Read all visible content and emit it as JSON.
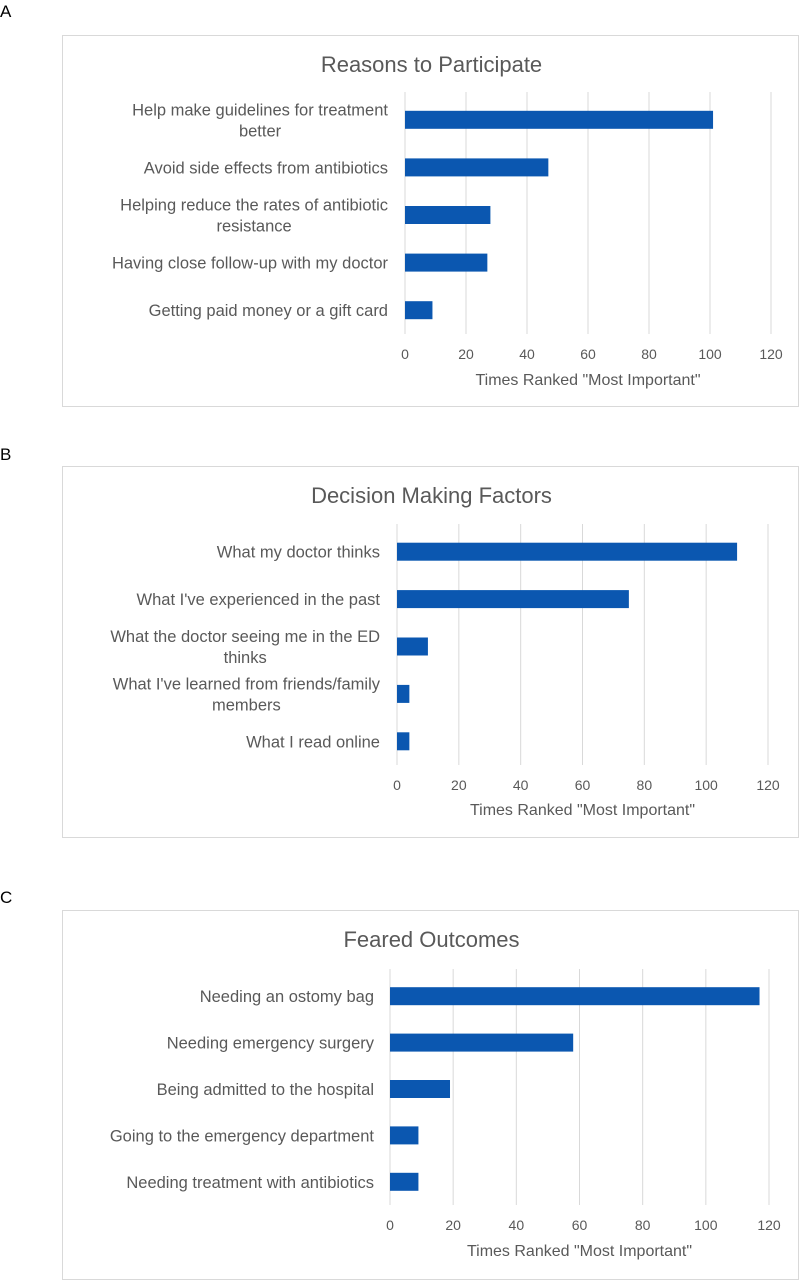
{
  "panels": [
    {
      "letter": "A",
      "chart_data": {
        "type": "bar",
        "orientation": "horizontal",
        "title": "Reasons to Participate",
        "categories": [
          [
            "Help make guidelines for treatment",
            "better"
          ],
          [
            "Avoid side effects from antibiotics"
          ],
          [
            "Helping reduce the rates of antibiotic",
            "resistance"
          ],
          [
            "Having close follow-up with my doctor"
          ],
          [
            "Getting paid money or a gift card"
          ]
        ],
        "values": [
          101,
          47,
          28,
          27,
          9
        ],
        "xlabel": "Times Ranked \"Most Important\"",
        "ylabel": "",
        "xlim": [
          0,
          120
        ],
        "xticks": [
          "0",
          "20",
          "40",
          "60",
          "80",
          "100",
          "120"
        ],
        "grid": true,
        "legend": "none",
        "bar_color": "#0b57b0"
      }
    },
    {
      "letter": "B",
      "chart_data": {
        "type": "bar",
        "orientation": "horizontal",
        "title": "Decision Making Factors",
        "categories": [
          [
            "What my doctor thinks"
          ],
          [
            "What I've experienced in the past"
          ],
          [
            "What the doctor seeing me in the ED",
            "thinks"
          ],
          [
            "What I've learned from friends/family",
            "members"
          ],
          [
            "What I read online"
          ]
        ],
        "values": [
          110,
          75,
          10,
          4,
          4
        ],
        "xlabel": "Times Ranked \"Most Important\"",
        "ylabel": "",
        "xlim": [
          0,
          120
        ],
        "xticks": [
          "0",
          "20",
          "40",
          "60",
          "80",
          "100",
          "120"
        ],
        "grid": true,
        "legend": "none",
        "bar_color": "#0b57b0"
      }
    },
    {
      "letter": "C",
      "chart_data": {
        "type": "bar",
        "orientation": "horizontal",
        "title": "Feared Outcomes",
        "categories": [
          [
            "Needing an ostomy bag"
          ],
          [
            "Needing emergency surgery"
          ],
          [
            "Being admitted to the hospital"
          ],
          [
            "Going to the emergency department"
          ],
          [
            "Needing treatment with antibiotics"
          ]
        ],
        "values": [
          117,
          58,
          19,
          9,
          9
        ],
        "xlabel": "Times Ranked \"Most Important\"",
        "ylabel": "",
        "xlim": [
          0,
          120
        ],
        "xticks": [
          "0",
          "20",
          "40",
          "60",
          "80",
          "100",
          "120"
        ],
        "grid": true,
        "legend": "none",
        "bar_color": "#0b57b0"
      }
    }
  ]
}
